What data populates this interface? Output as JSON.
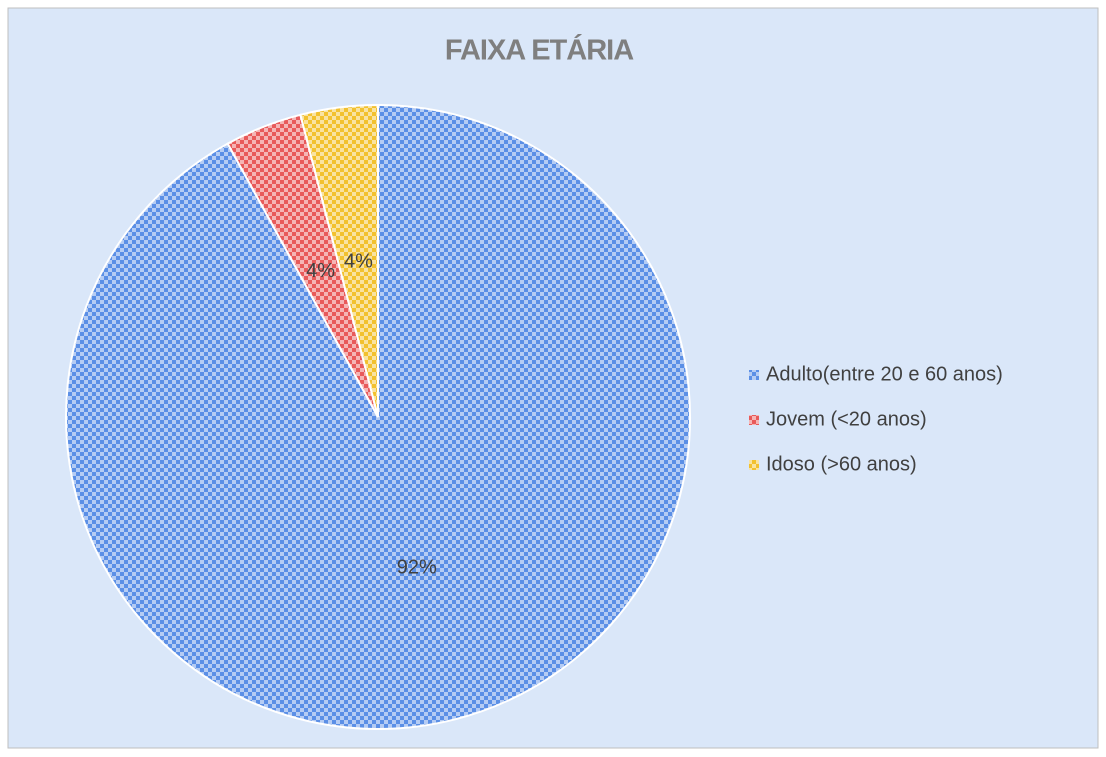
{
  "chart_data": {
    "type": "pie",
    "title": "FAIXA ETÁRIA",
    "categories": [
      "Adulto(entre 20 e 60 anos)",
      "Jovem (<20 anos)",
      "Idoso (>60 anos)"
    ],
    "values": [
      92,
      4,
      4
    ],
    "value_labels": [
      "92%",
      "4%",
      "4%"
    ],
    "colors": [
      "#5b8fe6",
      "#e85a5a",
      "#f2c12e"
    ]
  }
}
